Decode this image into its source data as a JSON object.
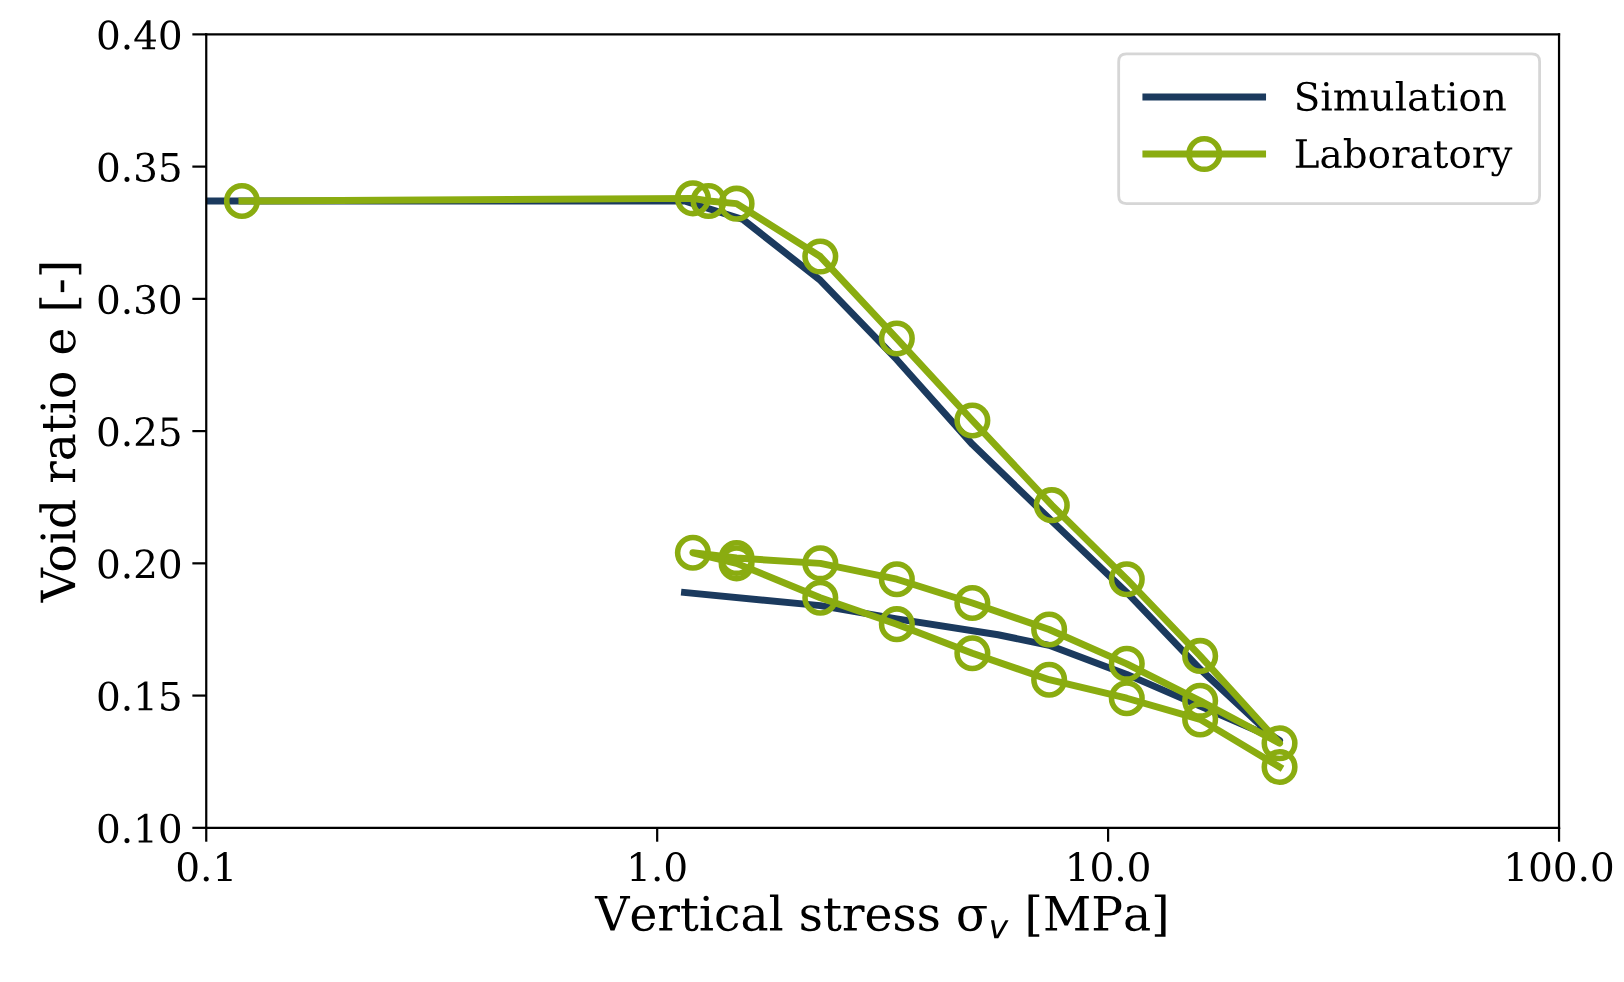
{
  "chart_data": {
    "type": "line",
    "xlabel": "Vertical stress σ$_{v}$ [MPa]",
    "ylabel": "Void ratio e [-]",
    "log": "x",
    "xlim": [
      0.1,
      100
    ],
    "ylim": [
      0.1,
      0.4
    ],
    "xticks": [
      {
        "value": 0.1,
        "label": "0.1"
      },
      {
        "value": 1,
        "label": "1.0"
      },
      {
        "value": 10,
        "label": "10.0"
      },
      {
        "value": 100,
        "label": "100.0"
      }
    ],
    "yticks": [
      {
        "value": 0.1,
        "label": "0.10"
      },
      {
        "value": 0.15,
        "label": "0.15"
      },
      {
        "value": 0.2,
        "label": "0.20"
      },
      {
        "value": 0.25,
        "label": "0.25"
      },
      {
        "value": 0.3,
        "label": "0.30"
      },
      {
        "value": 0.35,
        "label": "0.35"
      },
      {
        "value": 0.4,
        "label": "0.40"
      }
    ],
    "grid": false,
    "legend": "top right",
    "line_style": "solid",
    "series": [
      {
        "name": "Simulation",
        "color": "#1b3a5e",
        "marker": "none",
        "x": [
          0.1,
          1.15,
          1.55,
          2.3,
          3.4,
          5.0,
          7.5,
          11,
          16,
          23,
          24,
          16,
          11,
          7.4,
          5.7,
          3.4,
          2.3,
          1.15
        ],
        "values": [
          0.337,
          0.337,
          0.33,
          0.307,
          0.277,
          0.245,
          0.216,
          0.189,
          0.16,
          0.135,
          0.133,
          0.146,
          0.158,
          0.169,
          0.173,
          0.179,
          0.184,
          0.189
        ]
      },
      {
        "name": "Laboratory",
        "color": "#8aac10",
        "marker": "circle",
        "x": [
          0.12,
          1.2,
          1.3,
          1.5,
          2.3,
          3.4,
          5.0,
          7.5,
          11,
          16,
          24,
          16,
          11,
          7.4,
          5.0,
          3.4,
          2.3,
          1.5,
          1.2,
          1.5,
          2.3,
          3.4,
          5.0,
          7.4,
          11,
          16,
          24
        ],
        "values": [
          0.337,
          0.338,
          0.337,
          0.336,
          0.316,
          0.285,
          0.254,
          0.222,
          0.194,
          0.165,
          0.132,
          0.148,
          0.162,
          0.175,
          0.185,
          0.194,
          0.2,
          0.202,
          0.204,
          0.2,
          0.187,
          0.177,
          0.166,
          0.156,
          0.149,
          0.141,
          0.123
        ]
      }
    ]
  }
}
